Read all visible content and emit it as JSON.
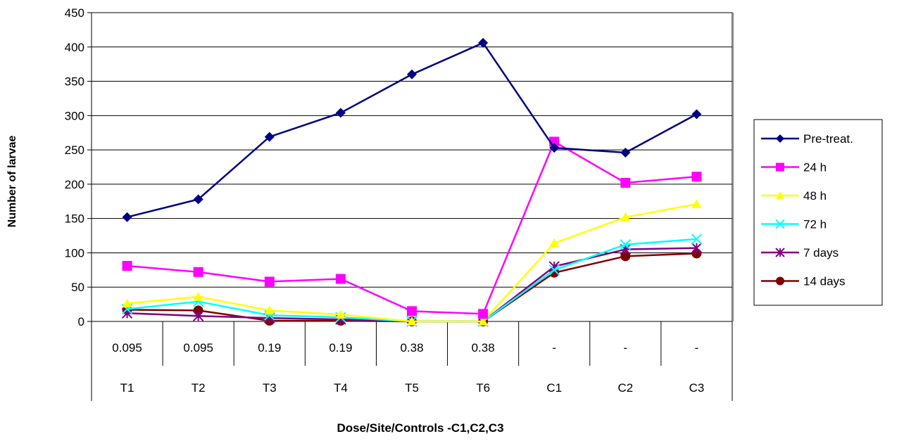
{
  "chart_data": {
    "type": "line",
    "title": "",
    "xlabel": "Dose/Site/Controls  -C1,C2,C3",
    "ylabel": "Number of larvae",
    "ylim": [
      0,
      450
    ],
    "yticks": [
      0,
      50,
      100,
      150,
      200,
      250,
      300,
      350,
      400,
      450
    ],
    "grid": true,
    "legend": "right",
    "categories": [
      "T1",
      "T2",
      "T3",
      "T4",
      "T5",
      "T6",
      "C1",
      "C2",
      "C3"
    ],
    "doses": [
      "0.095",
      "0.095",
      "0.19",
      "0.19",
      "0.38",
      "0.38",
      "-",
      "-",
      "-"
    ],
    "series": [
      {
        "name": "Pre-treat.",
        "color": "#000080",
        "marker": "diamond",
        "values": [
          152,
          178,
          269,
          304,
          360,
          406,
          253,
          246,
          302
        ]
      },
      {
        "name": "24 h",
        "color": "#FF00FF",
        "marker": "square",
        "values": [
          81,
          72,
          58,
          62,
          15,
          11,
          262,
          202,
          211
        ]
      },
      {
        "name": "48 h",
        "color": "#FFFF00",
        "marker": "triangle",
        "values": [
          26,
          36,
          16,
          10,
          0,
          0,
          114,
          152,
          171
        ]
      },
      {
        "name": "72 h",
        "color": "#00FFFF",
        "marker": "x",
        "values": [
          18,
          29,
          9,
          6,
          0,
          0,
          75,
          112,
          120
        ]
      },
      {
        "name": "7 days",
        "color": "#800080",
        "marker": "star",
        "values": [
          12,
          8,
          5,
          3,
          0,
          0,
          80,
          105,
          107
        ]
      },
      {
        "name": "14 days",
        "color": "#800000",
        "marker": "circle",
        "values": [
          17,
          16,
          1,
          1,
          0,
          0,
          71,
          95,
          99
        ]
      }
    ]
  }
}
